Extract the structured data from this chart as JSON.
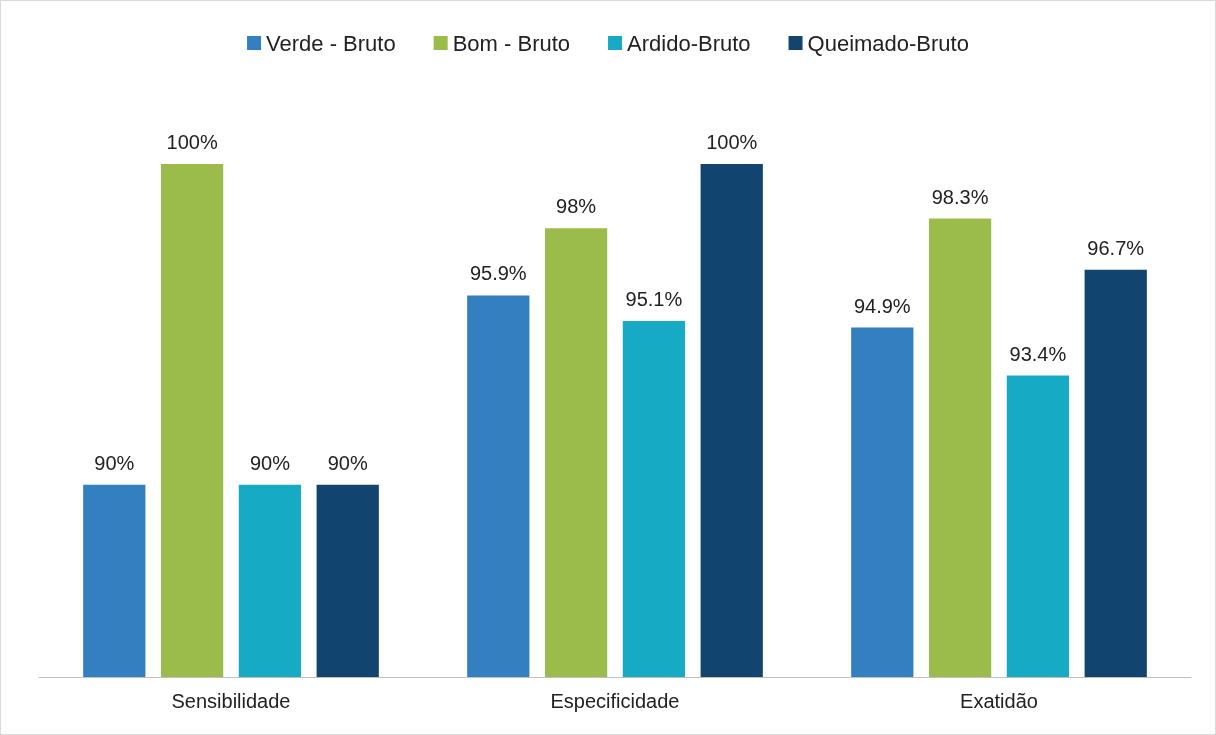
{
  "chart_data": {
    "type": "bar",
    "categories": [
      "Sensibilidade",
      "Especificidade",
      "Exatidão"
    ],
    "series": [
      {
        "name": "Verde - Bruto",
        "color": "#337fbf",
        "values": [
          90,
          95.9,
          94.9
        ],
        "value_labels": [
          "90%",
          "95.9%",
          "94.9%"
        ]
      },
      {
        "name": "Bom - Bruto",
        "color": "#9bbb4a",
        "values": [
          100,
          98,
          98.3
        ],
        "value_labels": [
          "100%",
          "98%",
          "98.3%"
        ]
      },
      {
        "name": "Ardido-Bruto",
        "color": "#17aac5",
        "values": [
          90,
          95.1,
          93.4
        ],
        "value_labels": [
          "90%",
          "95.1%",
          "93.4%"
        ]
      },
      {
        "name": "Queimado-Bruto",
        "color": "#11446e",
        "values": [
          90,
          100,
          96.7
        ],
        "value_labels": [
          "90%",
          "100%",
          "96.7%"
        ]
      }
    ],
    "ylim": [
      84,
      100
    ],
    "tick_labels": "x",
    "grid": false,
    "legend": "top"
  }
}
